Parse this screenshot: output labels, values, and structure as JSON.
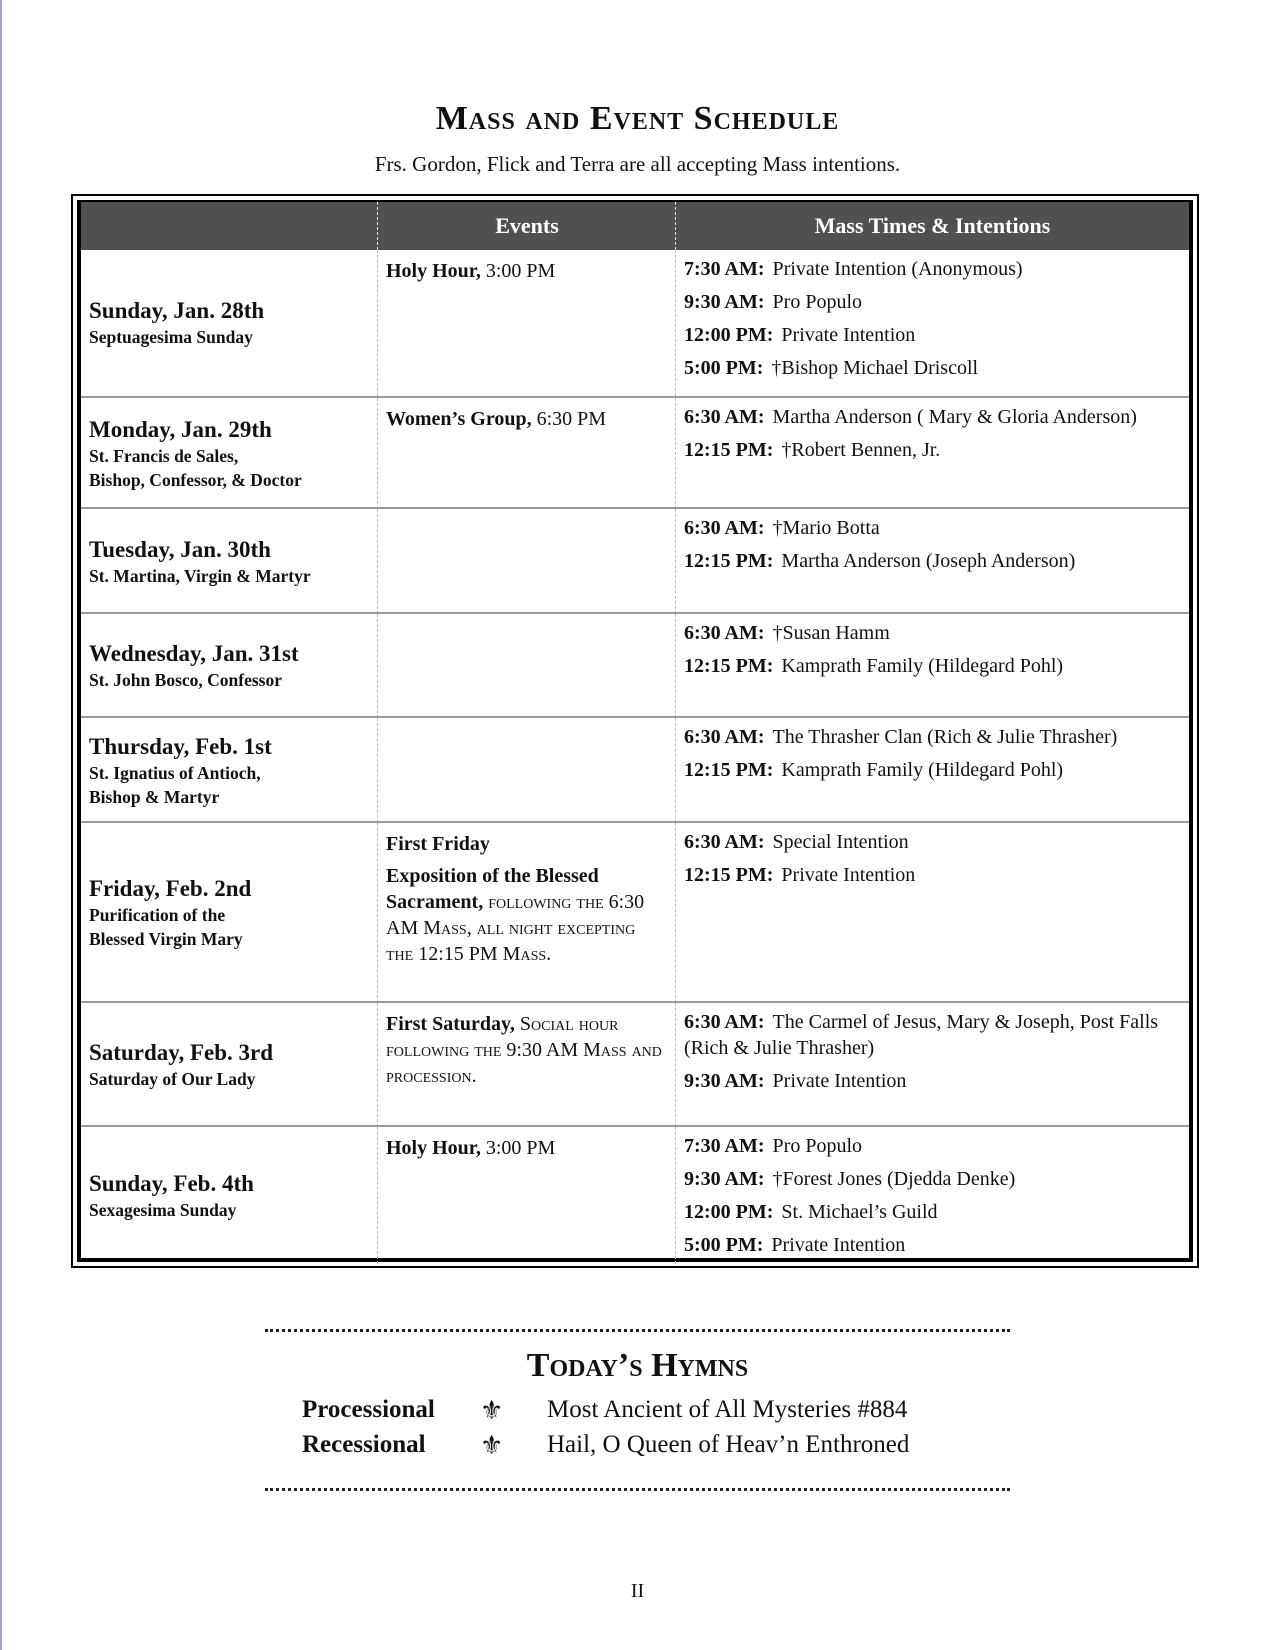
{
  "title": "Mass and Event Schedule",
  "subtitle": "Frs. Gordon, Flick and Terra are all accepting Mass intentions.",
  "table": {
    "headers": [
      "",
      "Events",
      "Mass Times & Intentions"
    ],
    "rows": [
      {
        "day": "Sunday, Jan. 28th",
        "feast": [
          "Septuagesima Sunday"
        ],
        "events": [
          {
            "bold": "Holy Hour,",
            "text": " 3:00 PM"
          }
        ],
        "masses": [
          {
            "time": "7:30 AM:",
            "intention": "Private Intention (Anonymous)"
          },
          {
            "time": "9:30 AM:",
            "intention": "Pro Populo"
          },
          {
            "time": "12:00 PM:",
            "intention": "Private Intention"
          },
          {
            "time": "5:00 PM:",
            "intention": "†Bishop Michael Driscoll"
          }
        ]
      },
      {
        "day": "Monday, Jan. 29th",
        "feast": [
          "St. Francis de Sales,",
          "Bishop, Confessor, & Doctor"
        ],
        "events": [
          {
            "bold": "Women’s Group,",
            "text": " 6:30 PM"
          }
        ],
        "masses": [
          {
            "time": "6:30 AM:",
            "intention": "Martha Anderson ( Mary & Gloria Anderson)"
          },
          {
            "time": "12:15 PM:",
            "intention": "†Robert Bennen, Jr."
          }
        ]
      },
      {
        "day": "Tuesday, Jan. 30th",
        "feast": [
          "St. Martina, Virgin & Martyr"
        ],
        "events": [],
        "masses": [
          {
            "time": "6:30 AM:",
            "intention": "†Mario Botta"
          },
          {
            "time": "12:15 PM:",
            "intention": "Martha Anderson (Joseph Anderson)"
          }
        ]
      },
      {
        "day": "Wednesday, Jan. 31st",
        "feast": [
          "St. John Bosco, Confessor"
        ],
        "events": [],
        "masses": [
          {
            "time": "6:30 AM:",
            "intention": "†Susan Hamm"
          },
          {
            "time": "12:15 PM:",
            "intention": "Kamprath Family (Hildegard Pohl)"
          }
        ]
      },
      {
        "day": "Thursday, Feb. 1st",
        "feast": [
          "St. Ignatius of Antioch,",
          "Bishop & Martyr"
        ],
        "events": [],
        "masses": [
          {
            "time": "6:30 AM:",
            "intention": "The Thrasher Clan (Rich & Julie Thrasher)"
          },
          {
            "time": "12:15 PM:",
            "intention": "Kamprath Family (Hildegard Pohl)"
          }
        ]
      },
      {
        "day": "Friday,  Feb. 2nd",
        "feast": [
          "Purification of the",
          "Blessed Virgin Mary"
        ],
        "events": [
          {
            "bold": "First Friday",
            "text": ""
          },
          {
            "bold": "Exposition of the Blessed Sacrament,",
            "text": " following the 6:30 AM Mass, all night excepting the 12:15 PM Mass."
          }
        ],
        "masses": [
          {
            "time": "6:30 AM:",
            "intention": "Special Intention"
          },
          {
            "time": "12:15 PM:",
            "intention": "Private Intention"
          }
        ]
      },
      {
        "day": "Saturday, Feb. 3rd",
        "feast": [
          "Saturday of Our Lady"
        ],
        "events": [
          {
            "bold": "First Saturday,",
            "text": " Social hour following the 9:30 AM Mass and procession."
          }
        ],
        "masses": [
          {
            "time": "6:30 AM:",
            "intention": "The Carmel of Jesus, Mary & Joseph, Post Falls (Rich & Julie Thrasher)"
          },
          {
            "time": "9:30 AM:",
            "intention": "Private Intention"
          }
        ]
      },
      {
        "day": "Sunday, Feb. 4th",
        "feast": [
          "Sexagesima Sunday"
        ],
        "events": [
          {
            "bold": "Holy Hour,",
            "text": " 3:00 PM"
          }
        ],
        "masses": [
          {
            "time": "7:30 AM:",
            "intention": "Pro Populo"
          },
          {
            "time": "9:30 AM:",
            "intention": "†Forest Jones (Djedda Denke)"
          },
          {
            "time": "12:00 PM:",
            "intention": "St. Michael’s Guild"
          },
          {
            "time": "5:00 PM:",
            "intention": "Private Intention"
          }
        ]
      }
    ]
  },
  "hymns": {
    "title": "Today’s Hymns",
    "icon": "fleur-de-lis-icon",
    "items": [
      {
        "label": "Processional",
        "title": "Most Ancient of All Mysteries #884"
      },
      {
        "label": "Recessional",
        "title": "Hail, O Queen of Heav’n Enthroned"
      }
    ]
  },
  "page_number": "II",
  "colors": {
    "header_bg": "#505050",
    "row_divider": "#999999"
  }
}
